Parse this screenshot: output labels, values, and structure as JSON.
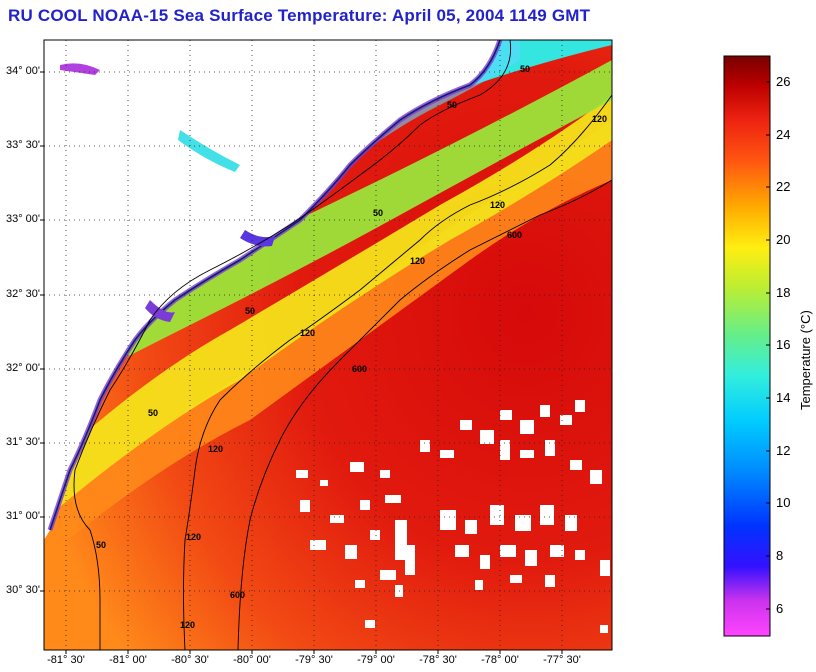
{
  "title": "RU COOL  NOAA-15  Sea Surface Temperature:  April 05, 2004 1149 GMT",
  "map": {
    "latitude_labels": [
      "34° 00'",
      "33° 30'",
      "33° 00'",
      "32° 30'",
      "32° 00'",
      "31° 30'",
      "31° 00'",
      "30° 30'"
    ],
    "longitude_labels": [
      "-81° 30'",
      "-81° 00'",
      "-80° 30'",
      "-80° 00'",
      "-79° 30'",
      "-79° 00'",
      "-78° 30'",
      "-78° 00'",
      "-77° 30'"
    ],
    "contour_labels": [
      "50",
      "50",
      "50",
      "50",
      "50",
      "50",
      "120",
      "120",
      "120",
      "120",
      "120",
      "120",
      "120",
      "600",
      "600",
      "600"
    ],
    "land_color": "#ffffff",
    "cloud_color": "#ffffff"
  },
  "colorbar": {
    "title": "Temperature (°C)",
    "ticks": [
      "26",
      "24",
      "22",
      "20",
      "18",
      "16",
      "14",
      "12",
      "10",
      "8",
      "6"
    ],
    "colors": [
      "#ff33ff",
      "#aa33ee",
      "#3322ff",
      "#1166ff",
      "#11aaff",
      "#22ddee",
      "#55ee99",
      "#aaee44",
      "#eeee22",
      "#ffbb11",
      "#ff7711",
      "#ff3311",
      "#dd1111",
      "#aa0000",
      "#770000"
    ]
  }
}
